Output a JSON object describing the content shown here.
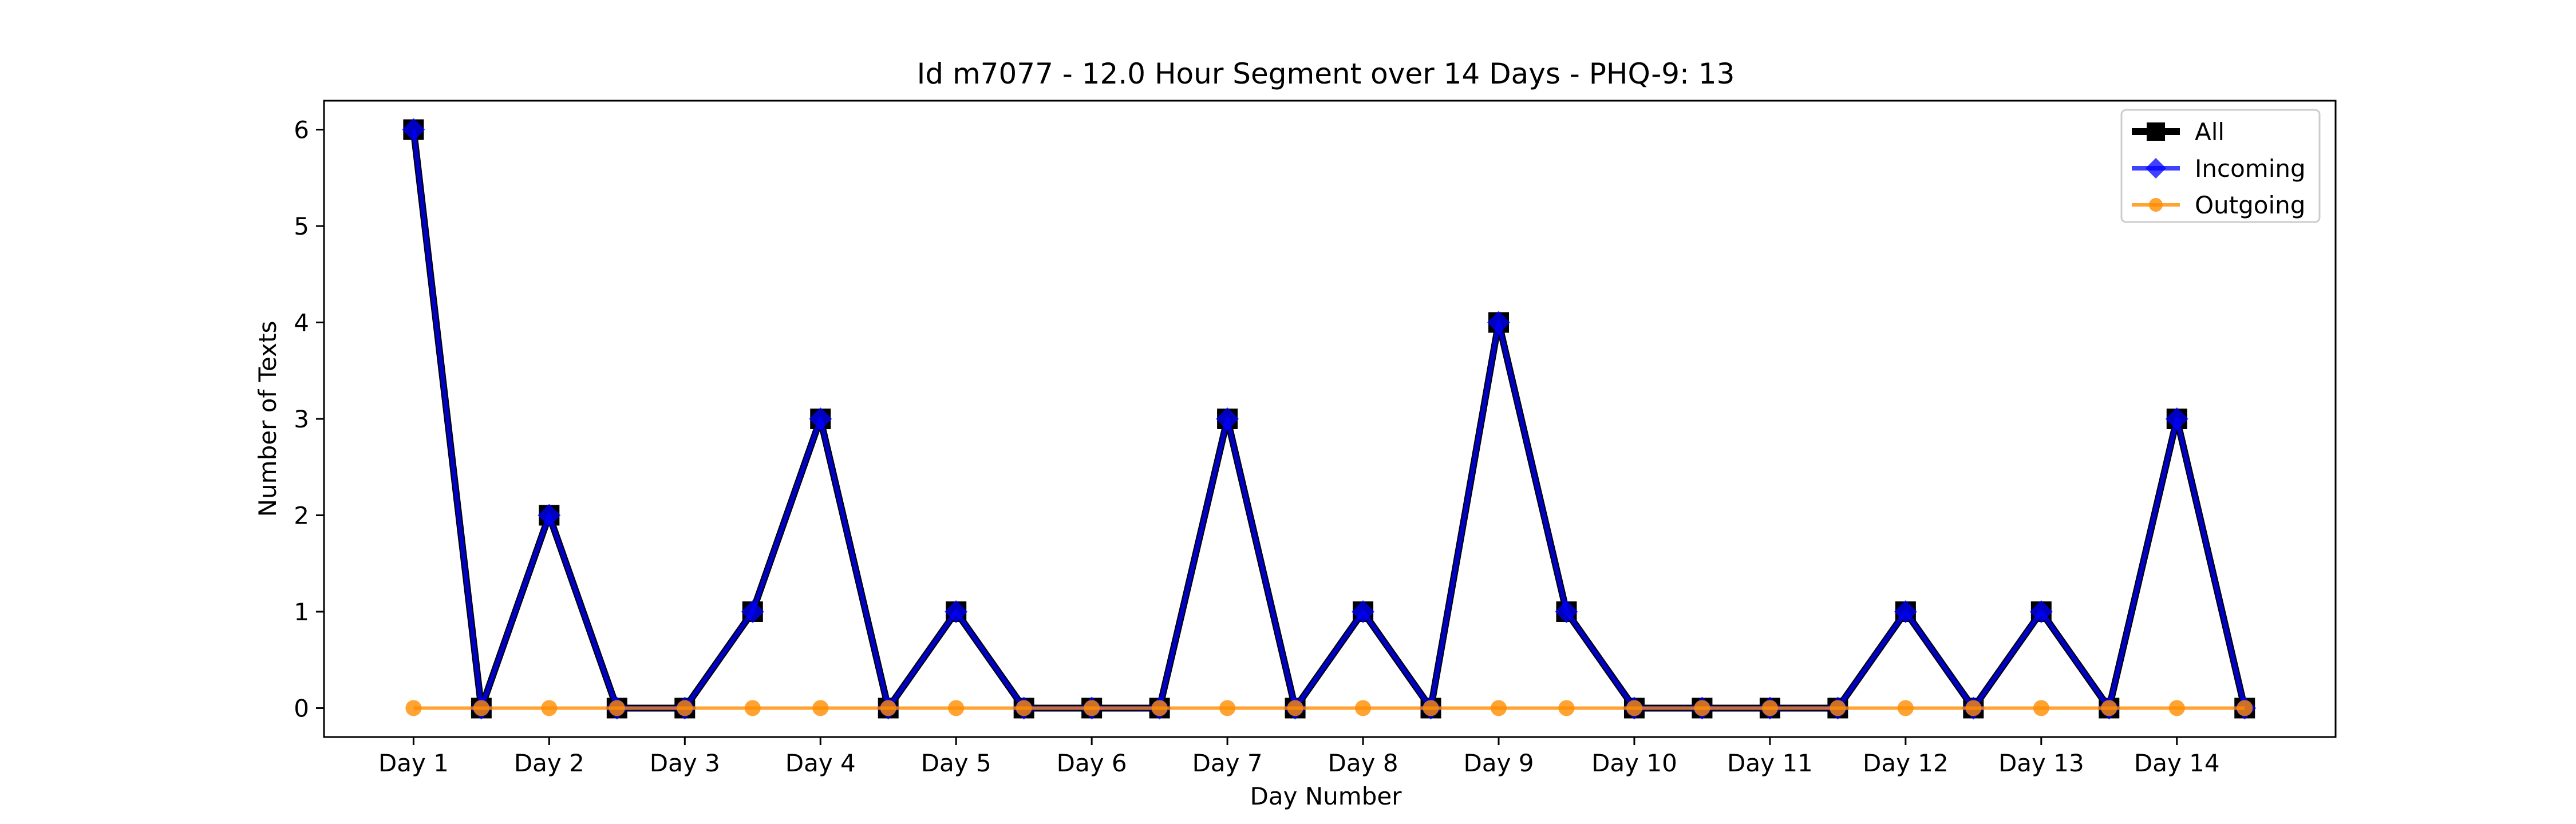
{
  "chart_data": {
    "type": "line",
    "title": "Id m7077 - 12.0 Hour Segment over 14 Days - PHQ-9: 13",
    "xlabel": "Day Number",
    "ylabel": "Number of Texts",
    "x_ticks": [
      "Day 1",
      "Day 2",
      "Day 3",
      "Day 4",
      "Day 5",
      "Day 6",
      "Day 7",
      "Day 8",
      "Day 9",
      "Day 10",
      "Day 11",
      "Day 12",
      "Day 13",
      "Day 14"
    ],
    "y_ticks": [
      0,
      1,
      2,
      3,
      4,
      5,
      6
    ],
    "xlim": [
      0.34,
      15.17
    ],
    "ylim": [
      -0.3,
      6.3
    ],
    "x": [
      1,
      1.5,
      2,
      2.5,
      3,
      3.5,
      4,
      4.5,
      5,
      5.5,
      6,
      6.5,
      7,
      7.5,
      8,
      8.5,
      9,
      9.5,
      10,
      10.5,
      11,
      11.5,
      12,
      12.5,
      13,
      13.5,
      14,
      14.5
    ],
    "legend_position": "top-right",
    "grid": false,
    "series": [
      {
        "name": "All",
        "color": "#000000",
        "marker": "square",
        "values": [
          6,
          0,
          2,
          0,
          0,
          1,
          3,
          0,
          1,
          0,
          0,
          0,
          3,
          0,
          1,
          0,
          4,
          1,
          0,
          0,
          0,
          0,
          1,
          0,
          1,
          0,
          3,
          0
        ]
      },
      {
        "name": "Incoming",
        "color": "#0000ff",
        "marker": "diamond",
        "values": [
          6,
          0,
          2,
          0,
          0,
          1,
          3,
          0,
          1,
          0,
          0,
          0,
          3,
          0,
          1,
          0,
          4,
          1,
          0,
          0,
          0,
          0,
          1,
          0,
          1,
          0,
          3,
          0
        ]
      },
      {
        "name": "Outgoing",
        "color": "#ff8c00",
        "marker": "circle",
        "values": [
          0,
          0,
          0,
          0,
          0,
          0,
          0,
          0,
          0,
          0,
          0,
          0,
          0,
          0,
          0,
          0,
          0,
          0,
          0,
          0,
          0,
          0,
          0,
          0,
          0,
          0,
          0,
          0
        ]
      }
    ]
  }
}
